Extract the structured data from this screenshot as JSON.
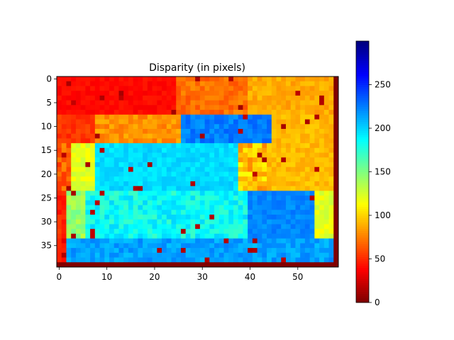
{
  "chart_data": {
    "type": "heatmap",
    "title": "Disparity (in pixels)",
    "grid": false,
    "colormap": "jet (reversed: 0 = dark red, ~300 = dark blue)",
    "shape": {
      "rows": 40,
      "cols": 59
    },
    "x_ticks": [
      0,
      10,
      20,
      30,
      40,
      50
    ],
    "y_ticks": [
      0,
      5,
      10,
      15,
      20,
      25,
      30,
      35
    ],
    "colorbar": {
      "ticks": [
        0,
        50,
        100,
        150,
        200,
        250
      ],
      "range": [
        0,
        300
      ]
    },
    "values_description": "approximate disparity map: low values (orange/red) upper-left and right, high values (cyan/blue) center, border at 0"
  }
}
